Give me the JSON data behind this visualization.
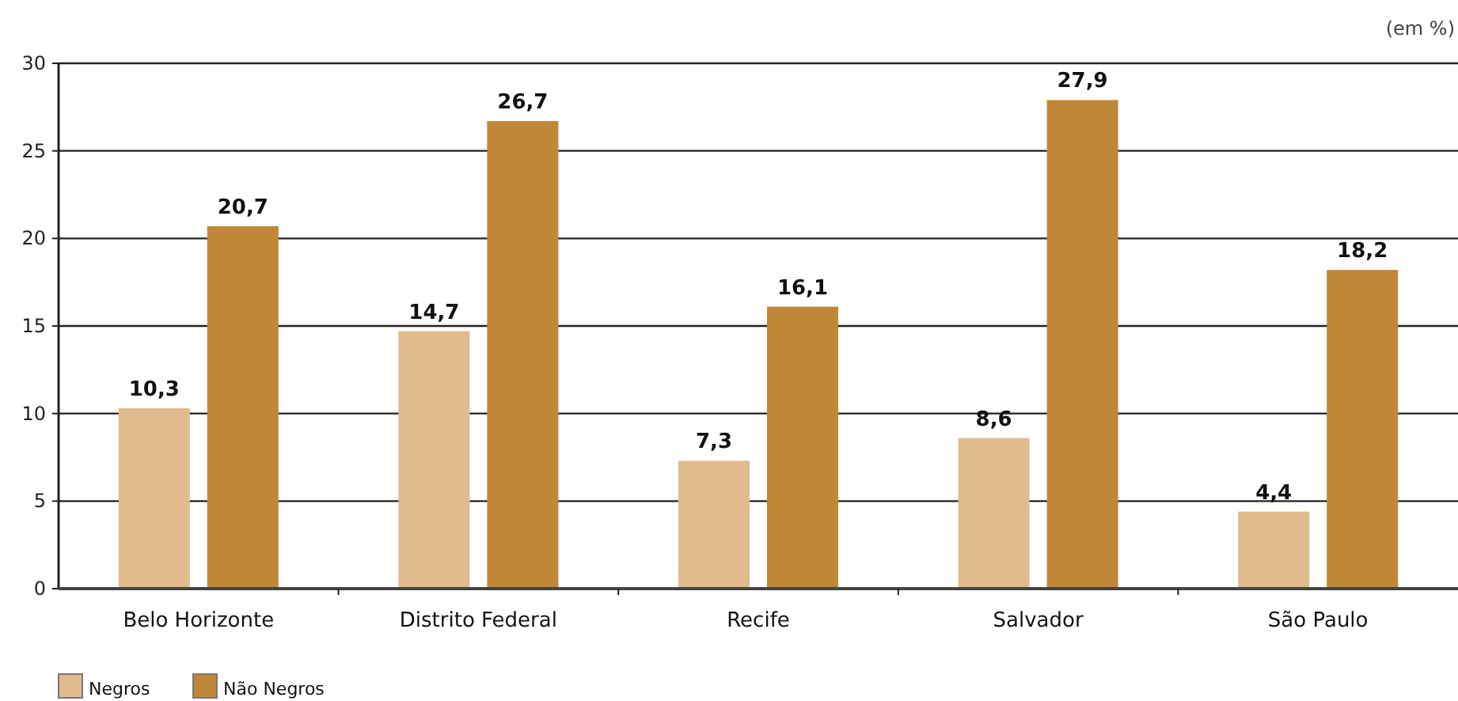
{
  "chart_data": {
    "type": "bar",
    "categories": [
      "Belo Horizonte",
      "Distrito Federal",
      "Recife",
      "Salvador",
      "São Paulo"
    ],
    "series": [
      {
        "name": "Negros",
        "color": "#e0bb8d",
        "values": [
          10.3,
          14.7,
          7.3,
          8.6,
          4.4
        ],
        "value_labels": [
          "10,3",
          "14,7",
          "7,3",
          "8,6",
          "4,4"
        ]
      },
      {
        "name": "Não Negros",
        "color": "#c08739",
        "values": [
          20.7,
          26.7,
          16.1,
          27.9,
          18.2
        ],
        "value_labels": [
          "20,7",
          "26,7",
          "16,1",
          "27,9",
          "18,2"
        ]
      }
    ],
    "ylim": [
      0,
      30
    ],
    "yticks": [
      0,
      5,
      10,
      15,
      20,
      25,
      30
    ],
    "grid": "y",
    "legend": "bottom left",
    "annotations": [
      "(em %)"
    ]
  }
}
